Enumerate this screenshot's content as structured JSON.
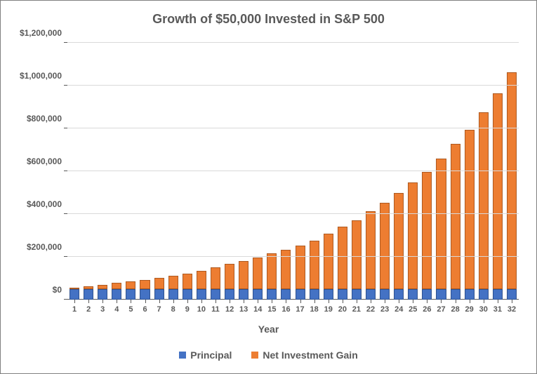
{
  "chart": {
    "type": "stacked-bar",
    "title": "Growth of $50,000 Invested in S&P 500",
    "title_fontsize": 18,
    "title_color": "#595959",
    "xlabel": "Year",
    "label_fontsize": 14,
    "label_color": "#595959",
    "background_color": "#ffffff",
    "grid_color": "#d9d9d9",
    "axis_color": "#595959",
    "tick_label_color": "#595959",
    "tick_label_fontsize": 12,
    "xtick_fontsize": 11,
    "ylim": [
      0,
      1200000
    ],
    "ytick_step": 200000,
    "ytick_labels": [
      "$0",
      "$200,000",
      "$400,000",
      "$600,000",
      "$800,000",
      "$1,000,000",
      "$1,200,000"
    ],
    "categories": [
      "1",
      "2",
      "3",
      "4",
      "5",
      "6",
      "7",
      "8",
      "9",
      "10",
      "11",
      "12",
      "13",
      "14",
      "15",
      "16",
      "17",
      "18",
      "19",
      "20",
      "21",
      "22",
      "23",
      "24",
      "25",
      "26",
      "27",
      "28",
      "29",
      "30",
      "31",
      "32"
    ],
    "series": [
      {
        "name": "Principal",
        "color": "#4472c4",
        "border_color": "#2f528f",
        "values": [
          50000,
          50000,
          50000,
          50000,
          50000,
          50000,
          50000,
          50000,
          50000,
          50000,
          50000,
          50000,
          50000,
          50000,
          50000,
          50000,
          50000,
          50000,
          50000,
          50000,
          50000,
          50000,
          50000,
          50000,
          50000,
          50000,
          50000,
          50000,
          50000,
          50000,
          50000,
          50000
        ]
      },
      {
        "name": "Net Investment Gain",
        "color": "#ed7d31",
        "border_color": "#ae5a21",
        "values": [
          6000,
          12500,
          20000,
          27000,
          35000,
          42000,
          50000,
          60000,
          72000,
          85000,
          100000,
          115000,
          130000,
          145000,
          165000,
          180000,
          200000,
          225000,
          255000,
          290000,
          320000,
          360000,
          400000,
          445000,
          495000,
          545000,
          605000,
          675000,
          740000,
          820000,
          910000,
          1005000
        ]
      }
    ],
    "bar_width": 0.7,
    "legend": {
      "fontsize": 14,
      "color": "#595959",
      "swatch_size": 10
    }
  }
}
